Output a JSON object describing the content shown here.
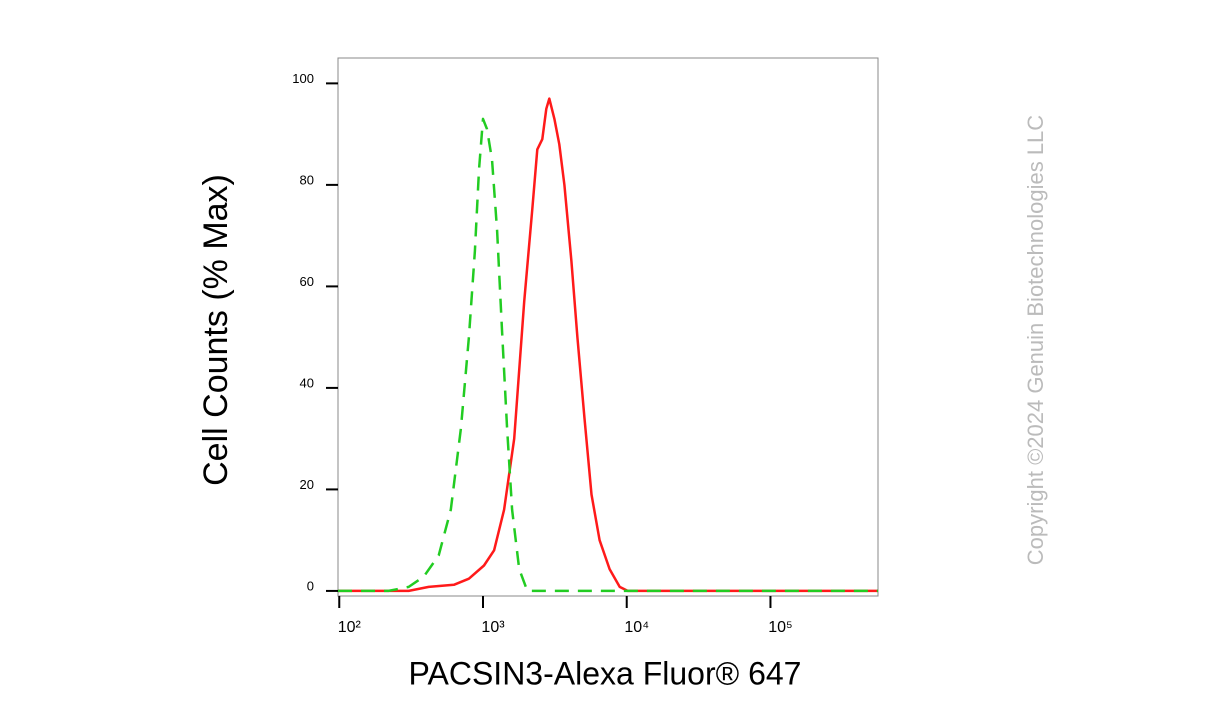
{
  "chart_data": {
    "type": "line",
    "xlabel": "PACSIN3-Alexa Fluor® 647",
    "ylabel": "Cell Counts (% Max)",
    "watermark": "Copyright ©2024 Genuin Biotechnologies LLC",
    "xscale": "log",
    "xlim": [
      98,
      560000
    ],
    "ylim": [
      -1,
      105
    ],
    "xticks": [
      {
        "value": 100,
        "label": "10²"
      },
      {
        "value": 1000,
        "label": "10³"
      },
      {
        "value": 10000,
        "label": "10⁴"
      },
      {
        "value": 100000,
        "label": "10⁵"
      }
    ],
    "yticks": [
      0,
      20,
      40,
      60,
      80,
      100
    ],
    "series": [
      {
        "color": "#ff1a1a",
        "dash": "solid",
        "x": [
          98,
          187,
          304,
          419,
          627,
          798,
          1016,
          1194,
          1402,
          1648,
          1936,
          2201,
          2386,
          2586,
          2758,
          2894,
          3137,
          3398,
          3684,
          4124,
          4540,
          5085,
          5690,
          6475,
          7606,
          8935,
          10160,
          32400,
          560000
        ],
        "values": [
          0,
          0,
          0,
          0.8,
          1.2,
          2.4,
          5,
          8,
          16,
          30,
          57,
          75,
          87,
          89,
          95,
          97,
          93,
          88,
          80,
          65,
          50,
          34,
          19,
          10,
          4.3,
          0.8,
          0,
          0,
          0
        ]
      },
      {
        "color": "#22cc22",
        "dash": "dashed",
        "x": [
          98,
          220,
          304,
          387,
          492,
          597,
          702,
          798,
          879,
          938,
          1000,
          1067,
          1156,
          1253,
          1358,
          1472,
          1595,
          1786,
          2032,
          6475,
          560000
        ],
        "values": [
          0,
          0,
          0.8,
          2.8,
          7,
          16,
          32,
          50,
          67,
          83,
          93,
          91,
          85,
          71,
          51,
          32,
          16,
          4.3,
          0,
          0,
          0
        ]
      }
    ]
  }
}
